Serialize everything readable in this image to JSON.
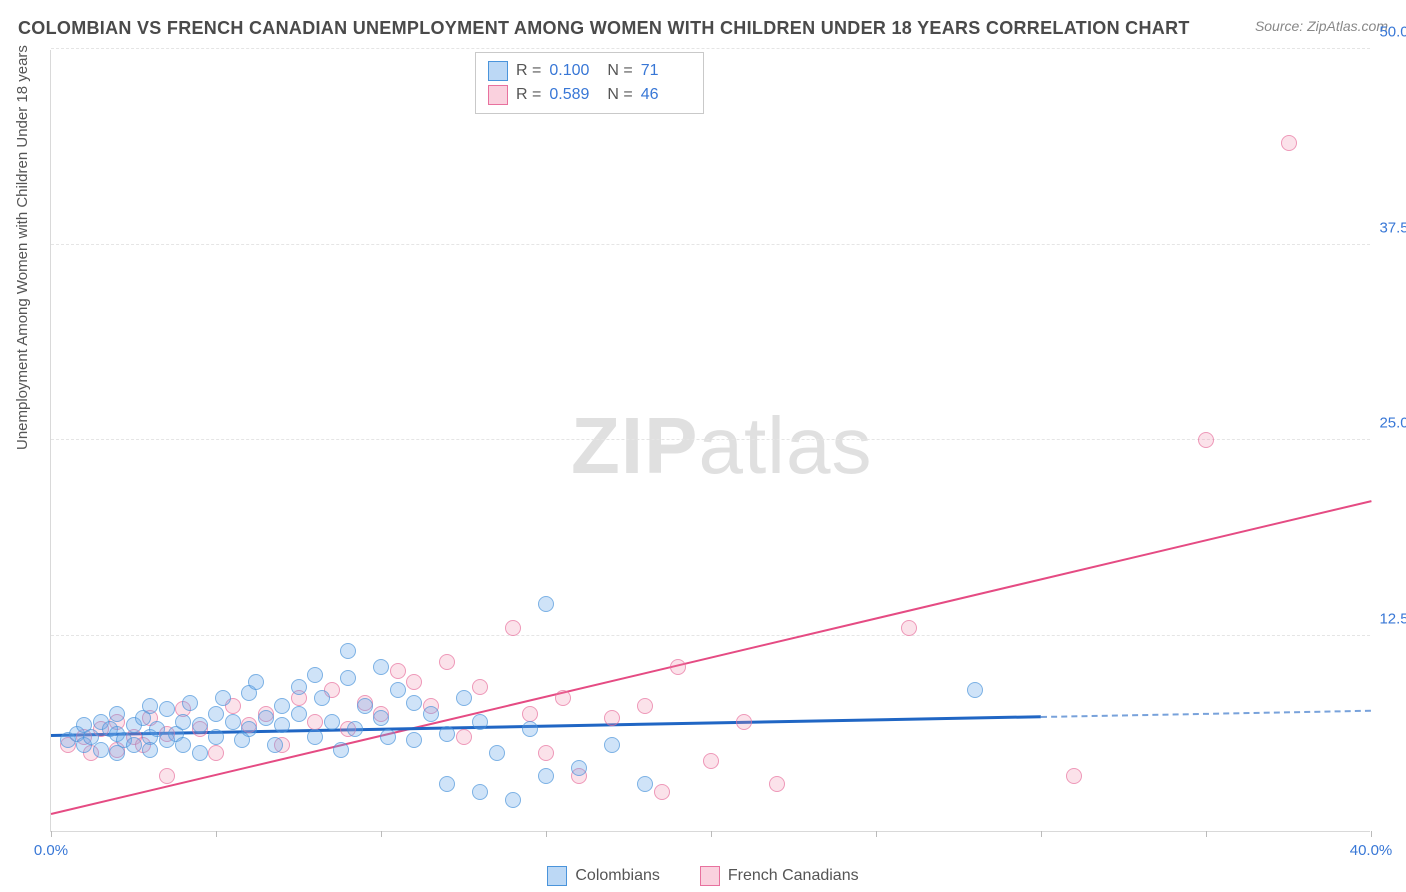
{
  "title": "COLOMBIAN VS FRENCH CANADIAN UNEMPLOYMENT AMONG WOMEN WITH CHILDREN UNDER 18 YEARS CORRELATION CHART",
  "source": "Source: ZipAtlas.com",
  "y_axis_label": "Unemployment Among Women with Children Under 18 years",
  "watermark_a": "ZIP",
  "watermark_b": "atlas",
  "chart": {
    "type": "scatter-with-regression",
    "xlim": [
      0,
      40
    ],
    "ylim": [
      0,
      50
    ],
    "x_ticks": [
      0,
      5,
      10,
      15,
      20,
      25,
      30,
      35,
      40
    ],
    "x_tick_labels": {
      "0": "0.0%",
      "40": "40.0%"
    },
    "y_ticks": [
      12.5,
      25.0,
      37.5,
      50.0
    ],
    "y_tick_labels": [
      "12.5%",
      "25.0%",
      "37.5%",
      "50.0%"
    ],
    "grid_color": "#e5e5e5",
    "background_color": "#ffffff",
    "marker_radius": 8,
    "series": [
      {
        "name": "Colombians",
        "color_fill": "rgba(106,168,232,0.45)",
        "color_stroke": "#4a94db",
        "line_color": "#2066c4",
        "r": "0.100",
        "n": "71",
        "trend": {
          "x1": 0,
          "y1": 6.0,
          "x2": 30,
          "y2": 7.2,
          "dash_from_x": 30,
          "dash_to_x": 40,
          "dash_y2": 7.6
        },
        "points": [
          [
            0.5,
            5.8
          ],
          [
            0.8,
            6.2
          ],
          [
            1.0,
            5.5
          ],
          [
            1.0,
            6.8
          ],
          [
            1.2,
            6.0
          ],
          [
            1.5,
            5.2
          ],
          [
            1.5,
            7.0
          ],
          [
            1.8,
            6.5
          ],
          [
            2.0,
            5.0
          ],
          [
            2.0,
            6.2
          ],
          [
            2.0,
            7.5
          ],
          [
            2.2,
            5.8
          ],
          [
            2.5,
            6.8
          ],
          [
            2.5,
            5.5
          ],
          [
            2.8,
            7.2
          ],
          [
            3.0,
            6.0
          ],
          [
            3.0,
            5.2
          ],
          [
            3.0,
            8.0
          ],
          [
            3.2,
            6.5
          ],
          [
            3.5,
            7.8
          ],
          [
            3.5,
            5.8
          ],
          [
            3.8,
            6.2
          ],
          [
            4.0,
            7.0
          ],
          [
            4.0,
            5.5
          ],
          [
            4.2,
            8.2
          ],
          [
            4.5,
            6.8
          ],
          [
            4.5,
            5.0
          ],
          [
            5.0,
            7.5
          ],
          [
            5.0,
            6.0
          ],
          [
            5.2,
            8.5
          ],
          [
            5.5,
            7.0
          ],
          [
            5.8,
            5.8
          ],
          [
            6.0,
            8.8
          ],
          [
            6.0,
            6.5
          ],
          [
            6.2,
            9.5
          ],
          [
            6.5,
            7.2
          ],
          [
            6.8,
            5.5
          ],
          [
            7.0,
            8.0
          ],
          [
            7.0,
            6.8
          ],
          [
            7.5,
            9.2
          ],
          [
            7.5,
            7.5
          ],
          [
            8.0,
            10.0
          ],
          [
            8.0,
            6.0
          ],
          [
            8.2,
            8.5
          ],
          [
            8.5,
            7.0
          ],
          [
            8.8,
            5.2
          ],
          [
            9.0,
            9.8
          ],
          [
            9.0,
            11.5
          ],
          [
            9.2,
            6.5
          ],
          [
            9.5,
            8.0
          ],
          [
            10.0,
            10.5
          ],
          [
            10.0,
            7.2
          ],
          [
            10.2,
            6.0
          ],
          [
            10.5,
            9.0
          ],
          [
            11.0,
            8.2
          ],
          [
            11.0,
            5.8
          ],
          [
            11.5,
            7.5
          ],
          [
            12.0,
            6.2
          ],
          [
            12.0,
            3.0
          ],
          [
            12.5,
            8.5
          ],
          [
            13.0,
            7.0
          ],
          [
            13.0,
            2.5
          ],
          [
            13.5,
            5.0
          ],
          [
            14.0,
            2.0
          ],
          [
            14.5,
            6.5
          ],
          [
            15.0,
            3.5
          ],
          [
            15.0,
            14.5
          ],
          [
            16.0,
            4.0
          ],
          [
            17.0,
            5.5
          ],
          [
            18.0,
            3.0
          ],
          [
            28.0,
            9.0
          ]
        ]
      },
      {
        "name": "French Canadians",
        "color_fill": "rgba(242,140,173,0.35)",
        "color_stroke": "#e8719e",
        "line_color": "#e54b83",
        "r": "0.589",
        "n": "46",
        "trend": {
          "x1": 0,
          "y1": 1.0,
          "x2": 40,
          "y2": 21.0
        },
        "points": [
          [
            0.5,
            5.5
          ],
          [
            1.0,
            6.0
          ],
          [
            1.2,
            5.0
          ],
          [
            1.5,
            6.5
          ],
          [
            2.0,
            5.2
          ],
          [
            2.0,
            7.0
          ],
          [
            2.5,
            6.0
          ],
          [
            2.8,
            5.5
          ],
          [
            3.0,
            7.2
          ],
          [
            3.5,
            6.2
          ],
          [
            3.5,
            3.5
          ],
          [
            4.0,
            7.8
          ],
          [
            4.5,
            6.5
          ],
          [
            5.0,
            5.0
          ],
          [
            5.5,
            8.0
          ],
          [
            6.0,
            6.8
          ],
          [
            6.5,
            7.5
          ],
          [
            7.0,
            5.5
          ],
          [
            7.5,
            8.5
          ],
          [
            8.0,
            7.0
          ],
          [
            8.5,
            9.0
          ],
          [
            9.0,
            6.5
          ],
          [
            9.5,
            8.2
          ],
          [
            10.0,
            7.5
          ],
          [
            10.5,
            10.2
          ],
          [
            11.0,
            9.5
          ],
          [
            11.5,
            8.0
          ],
          [
            12.0,
            10.8
          ],
          [
            12.5,
            6.0
          ],
          [
            13.0,
            9.2
          ],
          [
            14.0,
            13.0
          ],
          [
            14.5,
            7.5
          ],
          [
            15.0,
            5.0
          ],
          [
            15.5,
            8.5
          ],
          [
            16.0,
            3.5
          ],
          [
            17.0,
            7.2
          ],
          [
            18.0,
            8.0
          ],
          [
            18.5,
            2.5
          ],
          [
            19.0,
            10.5
          ],
          [
            20.0,
            4.5
          ],
          [
            21.0,
            7.0
          ],
          [
            22.0,
            3.0
          ],
          [
            26.0,
            13.0
          ],
          [
            31.0,
            3.5
          ],
          [
            35.0,
            25.0
          ],
          [
            37.5,
            44.0
          ]
        ]
      }
    ]
  },
  "stats_labels": {
    "r": "R =",
    "n": "N ="
  },
  "legend": {
    "series1": "Colombians",
    "series2": "French Canadians"
  }
}
